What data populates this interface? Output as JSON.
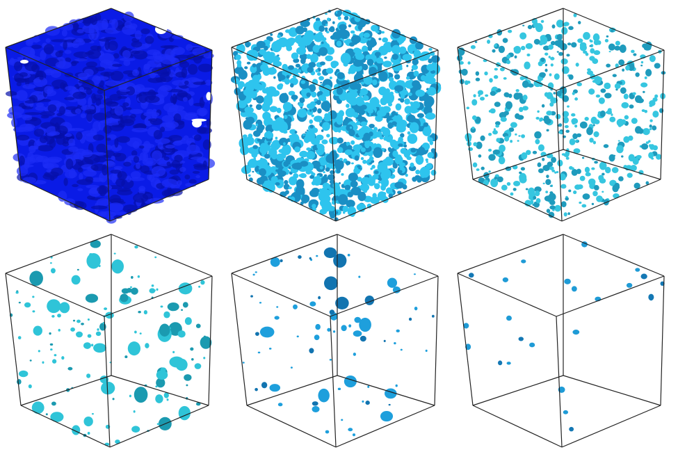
{
  "figure": {
    "panels": [
      {
        "density": "very-high",
        "color": "#0a1be6",
        "color_dark": "#0610a8",
        "fill_fraction": 1.0
      },
      {
        "density": "high",
        "color": "#2ec4ee",
        "color_dark": "#1a8fc4",
        "fill_fraction": 0.55
      },
      {
        "density": "medium",
        "color": "#36c6e0",
        "color_dark": "#1f9bbd",
        "fill_fraction": 0.22
      },
      {
        "density": "low",
        "color": "#2fc4d8",
        "color_dark": "#1b9ab0",
        "fill_fraction": 0.06
      },
      {
        "density": "sparse",
        "color": "#1e9fdc",
        "color_dark": "#1274b0",
        "fill_fraction": 0.035
      },
      {
        "density": "very-sparse",
        "color": "#1f9bd6",
        "color_dark": "#1478b4",
        "fill_fraction": 0.01
      }
    ]
  }
}
